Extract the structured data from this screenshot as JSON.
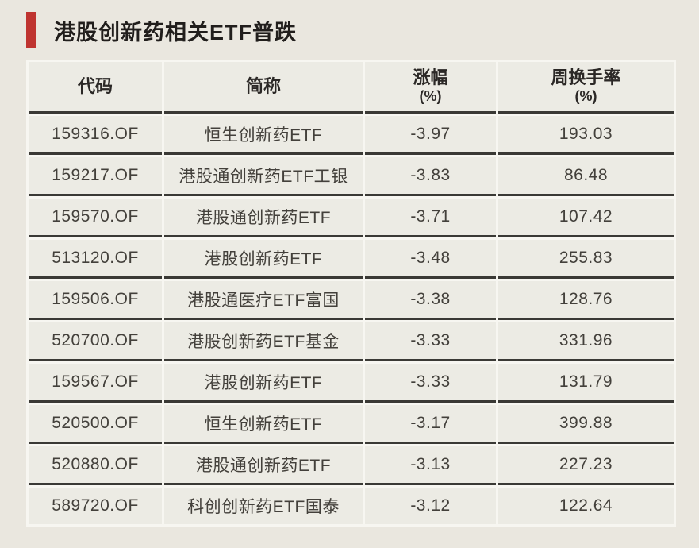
{
  "page": {
    "background_color": "#eae7df",
    "accent_color": "#bf3430",
    "cell_color": "#ecebe4",
    "gutter_color": "#f7f6f1",
    "rule_color": "#3a3935"
  },
  "title": {
    "text": "港股创新药相关ETF普跌"
  },
  "chart_data": {
    "type": "table",
    "title": "港股创新药相关ETF普跌",
    "columns": [
      {
        "label": "代码",
        "sub": ""
      },
      {
        "label": "简称",
        "sub": ""
      },
      {
        "label": "涨幅",
        "sub": "(%)"
      },
      {
        "label": "周换手率",
        "sub": "(%)"
      }
    ],
    "rows": [
      {
        "code": "159316.OF",
        "name": "恒生创新药ETF",
        "change": "-3.97",
        "turnover": "193.03"
      },
      {
        "code": "159217.OF",
        "name": "港股通创新药ETF工银",
        "change": "-3.83",
        "turnover": "86.48"
      },
      {
        "code": "159570.OF",
        "name": "港股通创新药ETF",
        "change": "-3.71",
        "turnover": "107.42"
      },
      {
        "code": "513120.OF",
        "name": "港股创新药ETF",
        "change": "-3.48",
        "turnover": "255.83"
      },
      {
        "code": "159506.OF",
        "name": "港股通医疗ETF富国",
        "change": "-3.38",
        "turnover": "128.76"
      },
      {
        "code": "520700.OF",
        "name": "港股创新药ETF基金",
        "change": "-3.33",
        "turnover": "331.96"
      },
      {
        "code": "159567.OF",
        "name": "港股创新药ETF",
        "change": "-3.33",
        "turnover": "131.79"
      },
      {
        "code": "520500.OF",
        "name": "恒生创新药ETF",
        "change": "-3.17",
        "turnover": "399.88"
      },
      {
        "code": "520880.OF",
        "name": "港股通创新药ETF",
        "change": "-3.13",
        "turnover": "227.23"
      },
      {
        "code": "589720.OF",
        "name": "科创创新药ETF国泰",
        "change": "-3.12",
        "turnover": "122.64"
      }
    ]
  }
}
